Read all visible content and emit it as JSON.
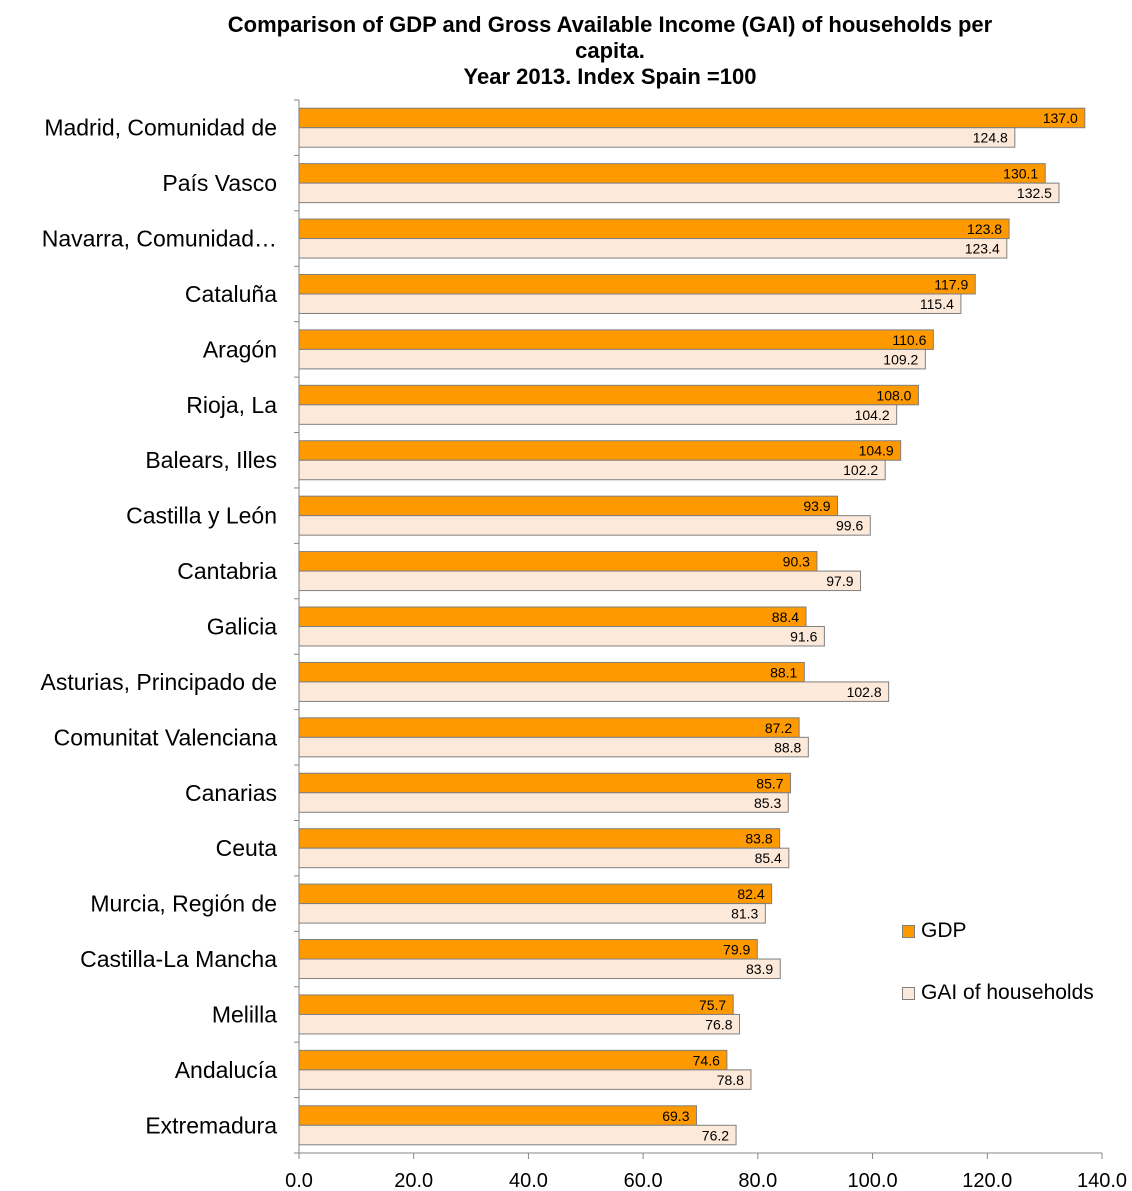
{
  "chart_data": {
    "type": "bar",
    "orientation": "horizontal",
    "title": {
      "line1": "Comparison of GDP and Gross Available Income (GAI) of households per",
      "line2": "capita.",
      "line3": "Year 2013. Index Spain =100"
    },
    "categories": [
      "Madrid, Comunidad de",
      "País Vasco",
      "Navarra, Comunidad…",
      "Cataluña",
      "Aragón",
      "Rioja, La",
      "Balears, Illes",
      "Castilla y León",
      "Cantabria",
      "Galicia",
      "Asturias, Principado de",
      "Comunitat Valenciana",
      "Canarias",
      "Ceuta",
      "Murcia, Región de",
      "Castilla-La Mancha",
      "Melilla",
      "Andalucía",
      "Extremadura"
    ],
    "series": [
      {
        "name": "GDP",
        "color": "#ff9900",
        "values": [
          137.0,
          130.1,
          123.8,
          117.9,
          110.6,
          108.0,
          104.9,
          93.9,
          90.3,
          88.4,
          88.1,
          87.2,
          85.7,
          83.8,
          82.4,
          79.9,
          75.7,
          74.6,
          69.3
        ]
      },
      {
        "name": "GAI of households",
        "color": "#fde9d9",
        "values": [
          124.8,
          132.5,
          123.4,
          115.4,
          109.2,
          104.2,
          102.2,
          99.6,
          97.9,
          91.6,
          102.8,
          88.8,
          85.3,
          85.4,
          81.3,
          83.9,
          76.8,
          78.8,
          76.2
        ]
      }
    ],
    "xlim": [
      0,
      140
    ],
    "xticks": [
      "0.0",
      "20.0",
      "40.0",
      "60.0",
      "80.0",
      "100.0",
      "120.0",
      "140.0"
    ],
    "grid": false,
    "legend_position": "right"
  }
}
